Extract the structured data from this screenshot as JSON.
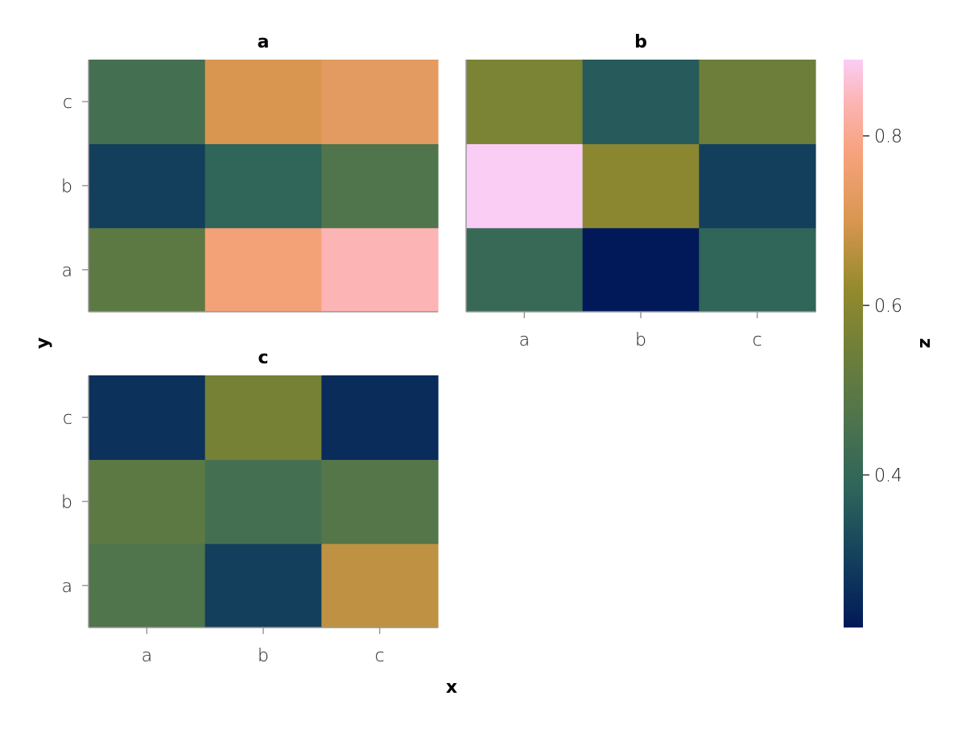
{
  "chart_data": {
    "type": "heatmap",
    "xlabel": "x",
    "ylabel": "y",
    "colorbar": {
      "label": "z",
      "range": [
        0.22,
        0.89
      ],
      "ticks": [
        0.4,
        0.6,
        0.8
      ],
      "tick_labels": [
        "0.4",
        "0.6",
        "0.8"
      ],
      "stops": [
        {
          "v": 0.22,
          "color": "#011959"
        },
        {
          "v": 0.3,
          "color": "#133f5c"
        },
        {
          "v": 0.38,
          "color": "#2c635b"
        },
        {
          "v": 0.46,
          "color": "#4c734d"
        },
        {
          "v": 0.54,
          "color": "#6c7e3a"
        },
        {
          "v": 0.62,
          "color": "#948a2c"
        },
        {
          "v": 0.7,
          "color": "#d99650"
        },
        {
          "v": 0.78,
          "color": "#f7a27c"
        },
        {
          "v": 0.84,
          "color": "#fdb4b4"
        },
        {
          "v": 0.89,
          "color": "#facdf5"
        }
      ]
    },
    "panels": [
      {
        "title": "a",
        "x_categories": [
          "a",
          "b",
          "c"
        ],
        "y_categories": [
          "a",
          "b",
          "c"
        ],
        "show_x_ticks": false,
        "show_y_ticks": true,
        "values": [
          [
            0.5,
            0.77,
            0.84
          ],
          [
            0.3,
            0.39,
            0.47
          ],
          [
            0.44,
            0.7,
            0.73
          ]
        ]
      },
      {
        "title": "b",
        "x_categories": [
          "a",
          "b",
          "c"
        ],
        "y_categories": [
          "a",
          "b",
          "c"
        ],
        "show_x_ticks": true,
        "show_y_ticks": false,
        "values": [
          [
            0.41,
            0.22,
            0.39
          ],
          [
            0.89,
            0.6,
            0.3
          ],
          [
            0.57,
            0.36,
            0.54
          ]
        ]
      },
      {
        "title": "c",
        "x_categories": [
          "a",
          "b",
          "c"
        ],
        "y_categories": [
          "a",
          "b",
          "c"
        ],
        "show_x_ticks": true,
        "show_y_ticks": true,
        "values": [
          [
            0.47,
            0.3,
            0.67
          ],
          [
            0.5,
            0.44,
            0.48
          ],
          [
            0.27,
            0.56,
            0.26
          ]
        ]
      }
    ]
  }
}
